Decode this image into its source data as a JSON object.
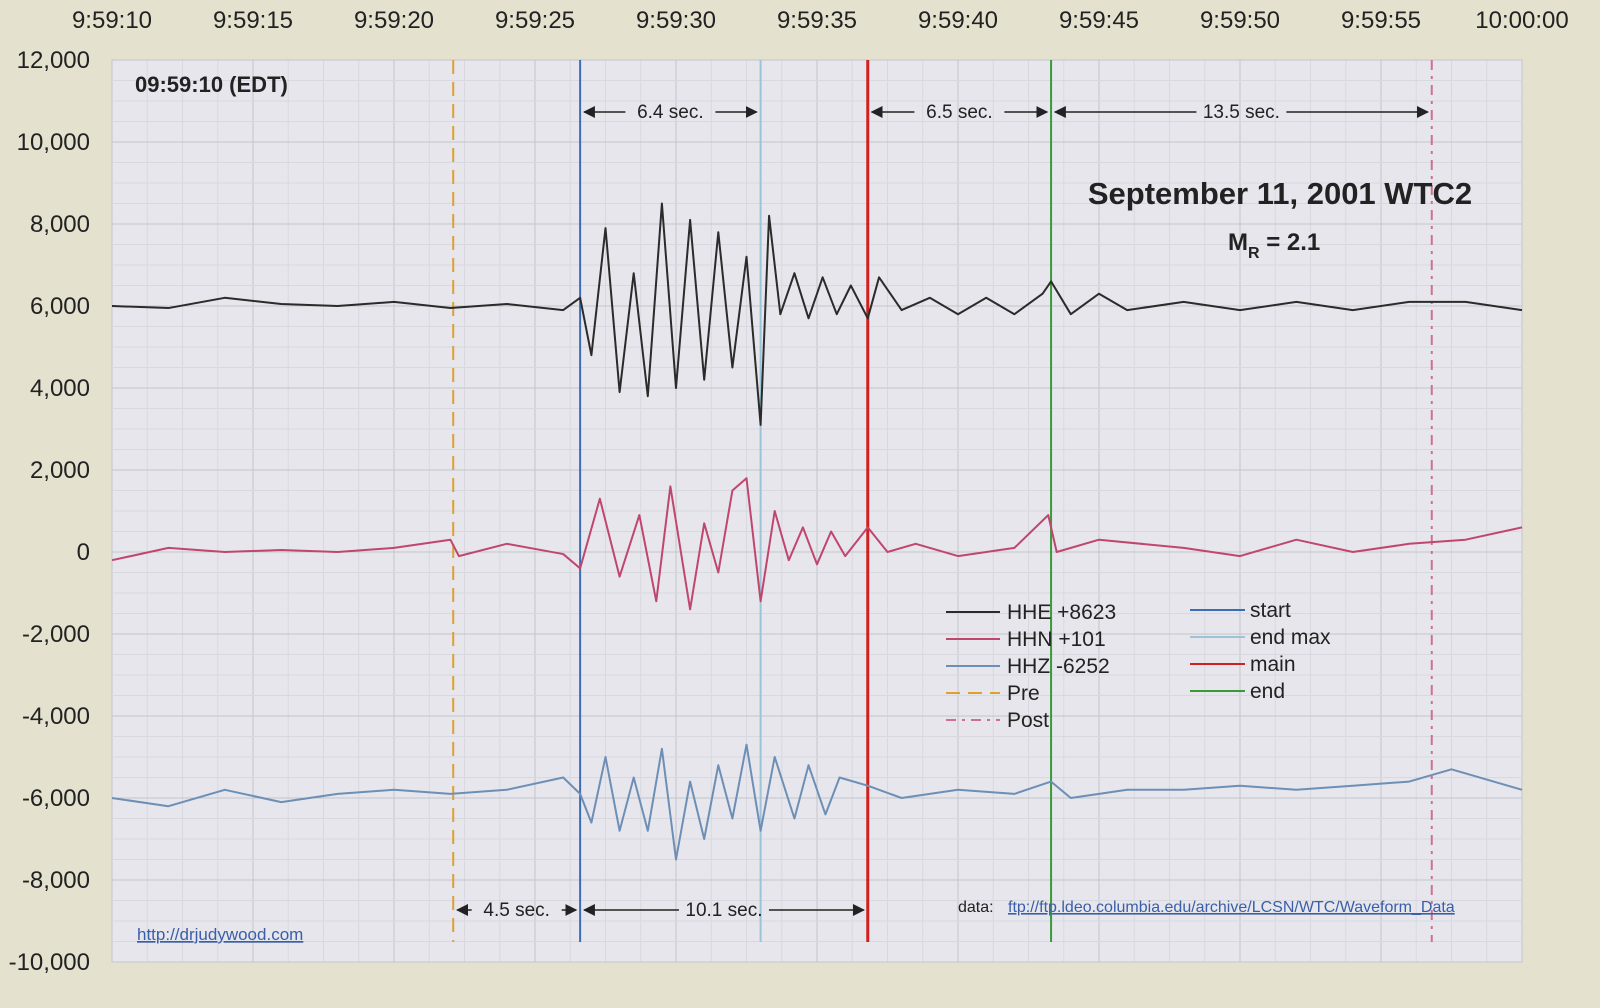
{
  "chart_data": {
    "type": "line",
    "title": "September 11, 2001 WTC2",
    "subtitle": "M_R = 2.1",
    "subtitle_main": "M",
    "subtitle_sub": "R",
    "subtitle_rest": " = 2.1",
    "time_label": "09:59:10 (EDT)",
    "xlim": [
      "9:59:10",
      "10:00:00"
    ],
    "ylim": [
      -10000,
      12000
    ],
    "x_ticks": [
      "9:59:10",
      "9:59:15",
      "9:59:20",
      "9:59:25",
      "9:59:30",
      "9:59:35",
      "9:59:40",
      "9:59:45",
      "9:59:50",
      "9:59:55",
      "10:00:00"
    ],
    "y_ticks": [
      12000,
      10000,
      8000,
      6000,
      4000,
      2000,
      0,
      -2000,
      -4000,
      -6000,
      -8000,
      -10000
    ],
    "y_tick_labels": [
      "12,000",
      "10,000",
      "8,000",
      "6,000",
      "4,000",
      "2,000",
      "0",
      "-2,000",
      "-4,000",
      "-6,000",
      "-8,000",
      "-10,000"
    ],
    "grid": true,
    "legend_placement": "bottom-center",
    "series": [
      {
        "name": "HHE",
        "label": "HHE  +8623",
        "color": "#2b2b2b",
        "points": [
          [
            "9:59:10",
            6000
          ],
          [
            "9:59:12",
            5950
          ],
          [
            "9:59:14",
            6200
          ],
          [
            "9:59:16",
            6050
          ],
          [
            "9:59:18",
            6000
          ],
          [
            "9:59:20",
            6100
          ],
          [
            "9:59:22",
            5950
          ],
          [
            "9:59:24",
            6050
          ],
          [
            "9:59:26",
            5900
          ],
          [
            "9:59:26.6",
            6200
          ],
          [
            "9:59:27",
            4800
          ],
          [
            "9:59:27.5",
            7900
          ],
          [
            "9:59:28",
            3900
          ],
          [
            "9:59:28.5",
            6800
          ],
          [
            "9:59:29",
            3800
          ],
          [
            "9:59:29.5",
            8500
          ],
          [
            "9:59:30",
            4000
          ],
          [
            "9:59:30.5",
            8100
          ],
          [
            "9:59:31",
            4200
          ],
          [
            "9:59:31.5",
            7800
          ],
          [
            "9:59:32",
            4500
          ],
          [
            "9:59:32.5",
            7200
          ],
          [
            "9:59:33",
            3100
          ],
          [
            "9:59:33.3",
            8200
          ],
          [
            "9:59:33.7",
            5800
          ],
          [
            "9:59:34.2",
            6800
          ],
          [
            "9:59:34.7",
            5700
          ],
          [
            "9:59:35.2",
            6700
          ],
          [
            "9:59:35.7",
            5800
          ],
          [
            "9:59:36.2",
            6500
          ],
          [
            "9:59:36.8",
            5700
          ],
          [
            "9:59:37.2",
            6700
          ],
          [
            "9:59:38",
            5900
          ],
          [
            "9:59:39",
            6200
          ],
          [
            "9:59:40",
            5800
          ],
          [
            "9:59:41",
            6200
          ],
          [
            "9:59:42",
            5800
          ],
          [
            "9:59:43",
            6300
          ],
          [
            "9:59:43.3",
            6600
          ],
          [
            "9:59:44",
            5800
          ],
          [
            "9:59:45",
            6300
          ],
          [
            "9:59:46",
            5900
          ],
          [
            "9:59:48",
            6100
          ],
          [
            "9:59:50",
            5900
          ],
          [
            "9:59:52",
            6100
          ],
          [
            "9:59:54",
            5900
          ],
          [
            "9:59:56",
            6100
          ],
          [
            "9:59:58",
            6100
          ],
          [
            "10:00:00",
            5900
          ]
        ]
      },
      {
        "name": "HHN",
        "label": "HHN  +101",
        "color": "#c0466e",
        "points": [
          [
            "9:59:10",
            -200
          ],
          [
            "9:59:12",
            100
          ],
          [
            "9:59:14",
            0
          ],
          [
            "9:59:16",
            50
          ],
          [
            "9:59:18",
            0
          ],
          [
            "9:59:20",
            100
          ],
          [
            "9:59:22",
            300
          ],
          [
            "9:59:22.3",
            -100
          ],
          [
            "9:59:24",
            200
          ],
          [
            "9:59:26",
            -50
          ],
          [
            "9:59:26.6",
            -400
          ],
          [
            "9:59:27.3",
            1300
          ],
          [
            "9:59:28",
            -600
          ],
          [
            "9:59:28.7",
            900
          ],
          [
            "9:59:29.3",
            -1200
          ],
          [
            "9:59:29.8",
            1600
          ],
          [
            "9:59:30.5",
            -1400
          ],
          [
            "9:59:31",
            700
          ],
          [
            "9:59:31.5",
            -500
          ],
          [
            "9:59:32",
            1500
          ],
          [
            "9:59:32.5",
            1800
          ],
          [
            "9:59:33",
            -1200
          ],
          [
            "9:59:33.5",
            1000
          ],
          [
            "9:59:34",
            -200
          ],
          [
            "9:59:34.5",
            600
          ],
          [
            "9:59:35",
            -300
          ],
          [
            "9:59:35.5",
            500
          ],
          [
            "9:59:36",
            -100
          ],
          [
            "9:59:36.8",
            600
          ],
          [
            "9:59:37.5",
            0
          ],
          [
            "9:59:38.5",
            200
          ],
          [
            "9:59:40",
            -100
          ],
          [
            "9:59:42",
            100
          ],
          [
            "9:59:43.2",
            900
          ],
          [
            "9:59:43.5",
            0
          ],
          [
            "9:59:45",
            300
          ],
          [
            "9:59:48",
            100
          ],
          [
            "9:59:50",
            -100
          ],
          [
            "9:59:52",
            300
          ],
          [
            "9:59:54",
            0
          ],
          [
            "9:59:56",
            200
          ],
          [
            "9:59:58",
            300
          ],
          [
            "10:00:00",
            600
          ]
        ]
      },
      {
        "name": "HHZ",
        "label": "HHZ  -6252",
        "color": "#6d8fb5",
        "points": [
          [
            "9:59:10",
            -6000
          ],
          [
            "9:59:12",
            -6200
          ],
          [
            "9:59:14",
            -5800
          ],
          [
            "9:59:16",
            -6100
          ],
          [
            "9:59:18",
            -5900
          ],
          [
            "9:59:20",
            -5800
          ],
          [
            "9:59:22",
            -5900
          ],
          [
            "9:59:24",
            -5800
          ],
          [
            "9:59:26",
            -5500
          ],
          [
            "9:59:26.6",
            -5900
          ],
          [
            "9:59:27",
            -6600
          ],
          [
            "9:59:27.5",
            -5000
          ],
          [
            "9:59:28",
            -6800
          ],
          [
            "9:59:28.5",
            -5500
          ],
          [
            "9:59:29",
            -6800
          ],
          [
            "9:59:29.5",
            -4800
          ],
          [
            "9:59:30",
            -7500
          ],
          [
            "9:59:30.5",
            -5600
          ],
          [
            "9:59:31",
            -7000
          ],
          [
            "9:59:31.5",
            -5200
          ],
          [
            "9:59:32",
            -6500
          ],
          [
            "9:59:32.5",
            -4700
          ],
          [
            "9:59:33",
            -6800
          ],
          [
            "9:59:33.5",
            -5000
          ],
          [
            "9:59:34.2",
            -6500
          ],
          [
            "9:59:34.7",
            -5200
          ],
          [
            "9:59:35.3",
            -6400
          ],
          [
            "9:59:35.8",
            -5500
          ],
          [
            "9:59:36.8",
            -5700
          ],
          [
            "9:59:38",
            -6000
          ],
          [
            "9:59:40",
            -5800
          ],
          [
            "9:59:42",
            -5900
          ],
          [
            "9:59:43.3",
            -5600
          ],
          [
            "9:59:44",
            -6000
          ],
          [
            "9:59:46",
            -5800
          ],
          [
            "9:59:48",
            -5800
          ],
          [
            "9:59:50",
            -5700
          ],
          [
            "9:59:52",
            -5800
          ],
          [
            "9:59:54",
            -5700
          ],
          [
            "9:59:56",
            -5600
          ],
          [
            "9:59:57.5",
            -5300
          ],
          [
            "10:00:00",
            -5800
          ]
        ]
      }
    ],
    "markers": [
      {
        "name": "Pre",
        "time": "9:59:22.1",
        "color": "#e0a030",
        "dash": "dashed"
      },
      {
        "name": "start",
        "time": "9:59:26.6",
        "color": "#3b6db5",
        "dash": "solid"
      },
      {
        "name": "end max",
        "time": "9:59:33.0",
        "color": "#9cc3d8",
        "dash": "solid"
      },
      {
        "name": "main",
        "time": "9:59:36.8",
        "color": "#d02020",
        "dash": "solid"
      },
      {
        "name": "end",
        "time": "9:59:43.3",
        "color": "#3a9a3a",
        "dash": "solid"
      },
      {
        "name": "Post",
        "time": "9:59:56.8",
        "color": "#d07090",
        "dash": "dashdot"
      }
    ],
    "intervals_top": [
      {
        "label": "6.4 sec.",
        "from": "9:59:26.6",
        "to": "9:59:33.0"
      },
      {
        "label": "6.5 sec.",
        "from": "9:59:36.8",
        "to": "9:59:43.3"
      },
      {
        "label": "13.5 sec.",
        "from": "9:59:43.3",
        "to": "9:59:56.8"
      }
    ],
    "intervals_bottom": [
      {
        "label": "4.5 sec.",
        "from": "9:59:22.1",
        "to": "9:59:26.6"
      },
      {
        "label": "10.1 sec.",
        "from": "9:59:26.6",
        "to": "9:59:36.8"
      }
    ],
    "credit_link": "http://drjudywood.com",
    "data_label": "data:",
    "data_link": "ftp://ftp.ldeo.columbia.edu/archive/LCSN/WTC/Waveform_Data"
  }
}
